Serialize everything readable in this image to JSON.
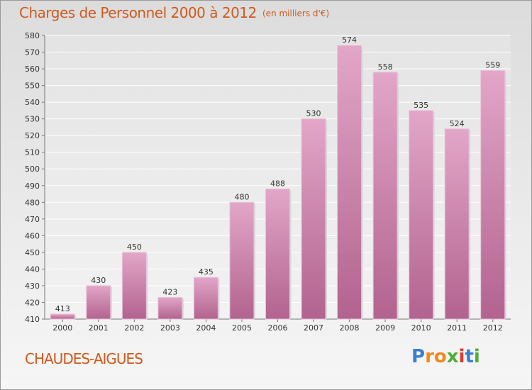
{
  "chart_data": {
    "type": "bar",
    "title": "Charges de Personnel 2000 à 2012",
    "subtitle": "(en milliers d'€)",
    "categories": [
      "2000",
      "2001",
      "2002",
      "2003",
      "2004",
      "2005",
      "2006",
      "2007",
      "2008",
      "2009",
      "2010",
      "2011",
      "2012"
    ],
    "values": [
      413,
      430,
      450,
      423,
      435,
      480,
      488,
      530,
      574,
      558,
      535,
      524,
      559
    ],
    "ylim": [
      410,
      580
    ],
    "yticks": [
      410,
      420,
      430,
      440,
      450,
      460,
      470,
      480,
      490,
      500,
      510,
      520,
      530,
      540,
      550,
      560,
      570,
      580
    ],
    "grid": true,
    "xlabel": "",
    "ylabel": "",
    "bar_color": "#c9709f"
  },
  "footer": {
    "place": "CHAUDES-AIGUES"
  },
  "logo": {
    "letters": [
      "P",
      "r",
      "o",
      "x",
      "i",
      "t",
      "i"
    ],
    "colors": [
      "#3a7fd0",
      "#f08a1c",
      "#f08a1c",
      "#4caf3a",
      "#e03a2e",
      "#3a7fd0",
      "#4caf3a"
    ]
  }
}
